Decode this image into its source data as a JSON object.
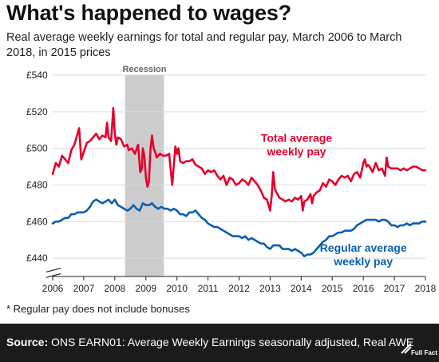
{
  "header": {
    "title": "What's happened to wages?",
    "subtitle": "Real average weekly earnings for total and regular pay, March 2006 to March 2018, in 2015 prices"
  },
  "footnote": "* Regular pay does not include bonuses",
  "footer": {
    "source_label": "Source:",
    "source_text": "ONS EARN01: Average Weekly Earnings seasonally adjusted, Real AWE",
    "logo_text": "Full Fact"
  },
  "colors": {
    "total": "#e4002b",
    "regular": "#0a5fae",
    "recession_band": "#cccccc",
    "footer_bg": "#1b1b1b"
  },
  "chart_data": {
    "type": "line",
    "title": "",
    "xlabel": "",
    "ylabel": "",
    "xlim": [
      2006,
      2018
    ],
    "ylim": [
      430,
      540
    ],
    "x_ticks": [
      "2006",
      "2007",
      "2008",
      "2009",
      "2010",
      "2011",
      "2012",
      "2013",
      "2014",
      "2015",
      "2016",
      "2017",
      "2018"
    ],
    "y_ticks": [
      "£440",
      "£460",
      "£480",
      "£500",
      "£520",
      "£540"
    ],
    "y_tick_values": [
      440,
      460,
      480,
      500,
      520,
      540
    ],
    "axis_break": true,
    "grid": "horizontal",
    "shaded_region": {
      "label": "Recession",
      "start": 2008.33,
      "end": 2009.58
    },
    "series": [
      {
        "name": "Total average weekly pay",
        "label_lines": [
          "Total average",
          "weekly pay"
        ],
        "color": "#e4002b",
        "points": [
          [
            2006.0,
            486
          ],
          [
            2006.1,
            492
          ],
          [
            2006.2,
            490
          ],
          [
            2006.3,
            496
          ],
          [
            2006.4,
            494
          ],
          [
            2006.5,
            492
          ],
          [
            2006.6,
            499
          ],
          [
            2006.7,
            502
          ],
          [
            2006.8,
            508
          ],
          [
            2006.85,
            511
          ],
          [
            2006.92,
            494
          ],
          [
            2007.0,
            498
          ],
          [
            2007.1,
            503
          ],
          [
            2007.2,
            504
          ],
          [
            2007.3,
            506
          ],
          [
            2007.4,
            508
          ],
          [
            2007.5,
            505
          ],
          [
            2007.6,
            507
          ],
          [
            2007.7,
            506
          ],
          [
            2007.75,
            514
          ],
          [
            2007.8,
            506
          ],
          [
            2007.88,
            504
          ],
          [
            2007.95,
            522
          ],
          [
            2008.0,
            508
          ],
          [
            2008.05,
            502
          ],
          [
            2008.1,
            506
          ],
          [
            2008.2,
            505
          ],
          [
            2008.3,
            501
          ],
          [
            2008.4,
            502
          ],
          [
            2008.45,
            499
          ],
          [
            2008.55,
            500
          ],
          [
            2008.65,
            497
          ],
          [
            2008.75,
            502
          ],
          [
            2008.82,
            487
          ],
          [
            2008.87,
            489
          ],
          [
            2008.9,
            500
          ],
          [
            2008.95,
            496
          ],
          [
            2009.0,
            484
          ],
          [
            2009.05,
            479
          ],
          [
            2009.1,
            482
          ],
          [
            2009.15,
            500
          ],
          [
            2009.2,
            507
          ],
          [
            2009.25,
            500
          ],
          [
            2009.3,
            498
          ],
          [
            2009.35,
            495
          ],
          [
            2009.45,
            497
          ],
          [
            2009.55,
            496
          ],
          [
            2009.65,
            496
          ],
          [
            2009.75,
            497
          ],
          [
            2009.85,
            480
          ],
          [
            2009.9,
            491
          ],
          [
            2009.95,
            501
          ],
          [
            2010.0,
            497
          ],
          [
            2010.05,
            500
          ],
          [
            2010.1,
            493
          ],
          [
            2010.2,
            492
          ],
          [
            2010.3,
            493
          ],
          [
            2010.4,
            493
          ],
          [
            2010.5,
            494
          ],
          [
            2010.6,
            491
          ],
          [
            2010.7,
            490
          ],
          [
            2010.8,
            489
          ],
          [
            2010.9,
            486
          ],
          [
            2011.0,
            488
          ],
          [
            2011.1,
            487
          ],
          [
            2011.2,
            488
          ],
          [
            2011.3,
            485
          ],
          [
            2011.4,
            483
          ],
          [
            2011.5,
            485
          ],
          [
            2011.6,
            480
          ],
          [
            2011.7,
            484
          ],
          [
            2011.8,
            483
          ],
          [
            2011.9,
            480
          ],
          [
            2012.0,
            481
          ],
          [
            2012.1,
            483
          ],
          [
            2012.2,
            482
          ],
          [
            2012.3,
            480
          ],
          [
            2012.4,
            484
          ],
          [
            2012.5,
            482
          ],
          [
            2012.6,
            480
          ],
          [
            2012.7,
            477
          ],
          [
            2012.8,
            473
          ],
          [
            2012.9,
            472
          ],
          [
            2013.0,
            466
          ],
          [
            2013.05,
            474
          ],
          [
            2013.1,
            487
          ],
          [
            2013.15,
            478
          ],
          [
            2013.2,
            476
          ],
          [
            2013.3,
            473
          ],
          [
            2013.4,
            472
          ],
          [
            2013.5,
            471
          ],
          [
            2013.6,
            472
          ],
          [
            2013.7,
            471
          ],
          [
            2013.8,
            473
          ],
          [
            2013.9,
            472
          ],
          [
            2014.0,
            474
          ],
          [
            2014.05,
            466
          ],
          [
            2014.1,
            471
          ],
          [
            2014.2,
            472
          ],
          [
            2014.3,
            475
          ],
          [
            2014.35,
            470
          ],
          [
            2014.4,
            474
          ],
          [
            2014.5,
            476
          ],
          [
            2014.6,
            477
          ],
          [
            2014.7,
            481
          ],
          [
            2014.8,
            479
          ],
          [
            2014.9,
            483
          ],
          [
            2015.0,
            482
          ],
          [
            2015.1,
            480
          ],
          [
            2015.2,
            483
          ],
          [
            2015.3,
            485
          ],
          [
            2015.4,
            484
          ],
          [
            2015.5,
            485
          ],
          [
            2015.6,
            482
          ],
          [
            2015.7,
            486
          ],
          [
            2015.8,
            487
          ],
          [
            2015.9,
            484
          ],
          [
            2016.0,
            492
          ],
          [
            2016.05,
            494
          ],
          [
            2016.1,
            490
          ],
          [
            2016.15,
            491
          ],
          [
            2016.2,
            490
          ],
          [
            2016.3,
            487
          ],
          [
            2016.4,
            492
          ],
          [
            2016.5,
            488
          ],
          [
            2016.6,
            489
          ],
          [
            2016.7,
            485
          ],
          [
            2016.75,
            495
          ],
          [
            2016.8,
            490
          ],
          [
            2016.9,
            489
          ],
          [
            2017.0,
            489
          ],
          [
            2017.1,
            489
          ],
          [
            2017.2,
            488
          ],
          [
            2017.3,
            489
          ],
          [
            2017.4,
            488
          ],
          [
            2017.5,
            489
          ],
          [
            2017.6,
            490
          ],
          [
            2017.7,
            490
          ],
          [
            2017.8,
            489
          ],
          [
            2017.9,
            488
          ],
          [
            2018.0,
            488
          ]
        ]
      },
      {
        "name": "Regular average weekly pay",
        "label_lines": [
          "Regular average",
          "weekly pay"
        ],
        "color": "#0a5fae",
        "points": [
          [
            2006.0,
            459
          ],
          [
            2006.1,
            460
          ],
          [
            2006.2,
            460
          ],
          [
            2006.3,
            461
          ],
          [
            2006.4,
            462
          ],
          [
            2006.5,
            462
          ],
          [
            2006.6,
            464
          ],
          [
            2006.7,
            464
          ],
          [
            2006.8,
            465
          ],
          [
            2006.9,
            465
          ],
          [
            2007.0,
            465
          ],
          [
            2007.1,
            466
          ],
          [
            2007.2,
            468
          ],
          [
            2007.3,
            471
          ],
          [
            2007.4,
            472
          ],
          [
            2007.5,
            471
          ],
          [
            2007.6,
            470
          ],
          [
            2007.7,
            471
          ],
          [
            2007.8,
            472
          ],
          [
            2007.9,
            470
          ],
          [
            2008.0,
            472
          ],
          [
            2008.1,
            469
          ],
          [
            2008.2,
            468
          ],
          [
            2008.3,
            467
          ],
          [
            2008.4,
            466
          ],
          [
            2008.5,
            467
          ],
          [
            2008.6,
            469
          ],
          [
            2008.7,
            467
          ],
          [
            2008.8,
            466
          ],
          [
            2008.9,
            470
          ],
          [
            2009.0,
            469
          ],
          [
            2009.1,
            469
          ],
          [
            2009.2,
            470
          ],
          [
            2009.3,
            468
          ],
          [
            2009.4,
            467
          ],
          [
            2009.5,
            468
          ],
          [
            2009.6,
            467
          ],
          [
            2009.7,
            467
          ],
          [
            2009.8,
            466
          ],
          [
            2009.9,
            467
          ],
          [
            2010.0,
            466
          ],
          [
            2010.1,
            464
          ],
          [
            2010.2,
            464
          ],
          [
            2010.3,
            463
          ],
          [
            2010.4,
            465
          ],
          [
            2010.5,
            465
          ],
          [
            2010.6,
            466
          ],
          [
            2010.7,
            464
          ],
          [
            2010.8,
            462
          ],
          [
            2010.9,
            461
          ],
          [
            2011.0,
            459
          ],
          [
            2011.1,
            458
          ],
          [
            2011.2,
            457
          ],
          [
            2011.3,
            457
          ],
          [
            2011.4,
            456
          ],
          [
            2011.5,
            455
          ],
          [
            2011.6,
            454
          ],
          [
            2011.7,
            453
          ],
          [
            2011.8,
            452
          ],
          [
            2011.9,
            452
          ],
          [
            2012.0,
            452
          ],
          [
            2012.1,
            451
          ],
          [
            2012.2,
            452
          ],
          [
            2012.3,
            450
          ],
          [
            2012.4,
            451
          ],
          [
            2012.5,
            450
          ],
          [
            2012.6,
            449
          ],
          [
            2012.7,
            448
          ],
          [
            2012.8,
            448
          ],
          [
            2012.9,
            446
          ],
          [
            2013.0,
            445
          ],
          [
            2013.1,
            447
          ],
          [
            2013.2,
            447
          ],
          [
            2013.3,
            447
          ],
          [
            2013.4,
            445
          ],
          [
            2013.5,
            445
          ],
          [
            2013.6,
            445
          ],
          [
            2013.7,
            444
          ],
          [
            2013.8,
            445
          ],
          [
            2013.9,
            444
          ],
          [
            2014.0,
            443
          ],
          [
            2014.1,
            441
          ],
          [
            2014.2,
            442
          ],
          [
            2014.3,
            442
          ],
          [
            2014.4,
            443
          ],
          [
            2014.5,
            445
          ],
          [
            2014.6,
            447
          ],
          [
            2014.7,
            449
          ],
          [
            2014.8,
            450
          ],
          [
            2014.9,
            452
          ],
          [
            2015.0,
            452
          ],
          [
            2015.1,
            453
          ],
          [
            2015.2,
            454
          ],
          [
            2015.3,
            454
          ],
          [
            2015.4,
            455
          ],
          [
            2015.5,
            455
          ],
          [
            2015.6,
            455
          ],
          [
            2015.7,
            456
          ],
          [
            2015.8,
            458
          ],
          [
            2015.9,
            459
          ],
          [
            2016.0,
            460
          ],
          [
            2016.1,
            461
          ],
          [
            2016.2,
            461
          ],
          [
            2016.3,
            461
          ],
          [
            2016.4,
            461
          ],
          [
            2016.5,
            460
          ],
          [
            2016.6,
            461
          ],
          [
            2016.7,
            461
          ],
          [
            2016.8,
            460
          ],
          [
            2016.9,
            458
          ],
          [
            2017.0,
            458
          ],
          [
            2017.1,
            457
          ],
          [
            2017.2,
            458
          ],
          [
            2017.3,
            458
          ],
          [
            2017.4,
            459
          ],
          [
            2017.5,
            458
          ],
          [
            2017.6,
            459
          ],
          [
            2017.7,
            459
          ],
          [
            2017.8,
            459
          ],
          [
            2017.9,
            460
          ],
          [
            2018.0,
            460
          ]
        ]
      }
    ]
  }
}
